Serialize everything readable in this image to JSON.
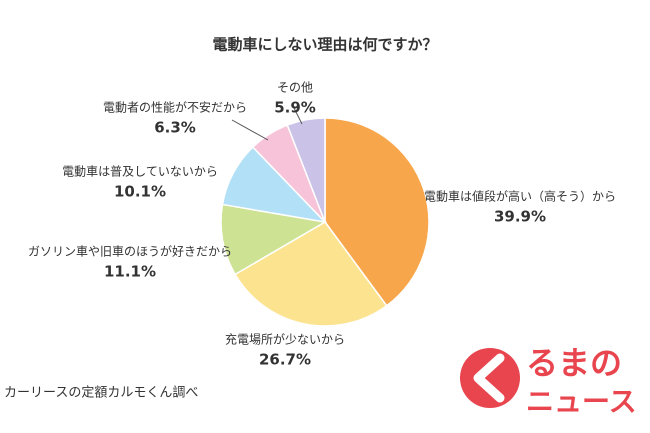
{
  "chart_data": {
    "type": "pie",
    "title": "電動車にしない理由は何ですか？",
    "categories": [
      "電動車は値段が高い（高そう）から",
      "充電場所が少ないから",
      "ガソリン車や旧車のほうが好きだから",
      "電動車は普及していないから",
      "電動者の性能が不安だから",
      "その他"
    ],
    "values": [
      39.9,
      26.7,
      11.1,
      10.1,
      6.3,
      5.9
    ],
    "value_labels": [
      "39.9%",
      "26.7%",
      "11.1%",
      "10.1%",
      "6.3%",
      "5.9%"
    ],
    "colors": [
      "#f8a64c",
      "#fce38f",
      "#cde293",
      "#b2e0f6",
      "#f6c3d9",
      "#cbc2e8"
    ],
    "source": "カーリースの定額カルモくん調べ",
    "watermark": [
      "るまの",
      "ニュース"
    ]
  }
}
